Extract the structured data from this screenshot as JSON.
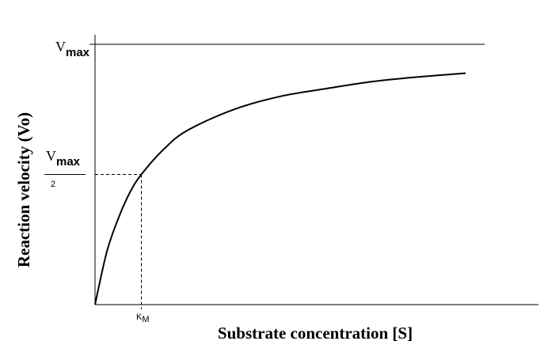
{
  "chart_data": {
    "type": "line",
    "xlabel": "Substrate concentration [S]",
    "ylabel": "Reaction velocity (Vo)",
    "vmax_label": {
      "main": "V",
      "sub": "max"
    },
    "half_vmax_label": {
      "main": "V",
      "sub": "max",
      "denominator": "2"
    },
    "km_label": {
      "main": "K",
      "sub": "M"
    },
    "series": [
      {
        "x": [
          0,
          0.25,
          0.5,
          0.75,
          1.0,
          1.5,
          2.0,
          3.0,
          4.0,
          5.0,
          6.0,
          7.0,
          8.0
        ],
        "y": [
          0,
          0.2,
          0.33,
          0.43,
          0.5,
          0.6,
          0.67,
          0.75,
          0.8,
          0.83,
          0.857,
          0.875,
          0.889
        ]
      }
    ],
    "km": 1.0,
    "vmax": 1.0,
    "xlim": [
      0,
      9.5
    ],
    "ylim": [
      0,
      1.0
    ],
    "grid": false,
    "colors": {
      "curve": "#000000",
      "axes": "#000000"
    }
  }
}
